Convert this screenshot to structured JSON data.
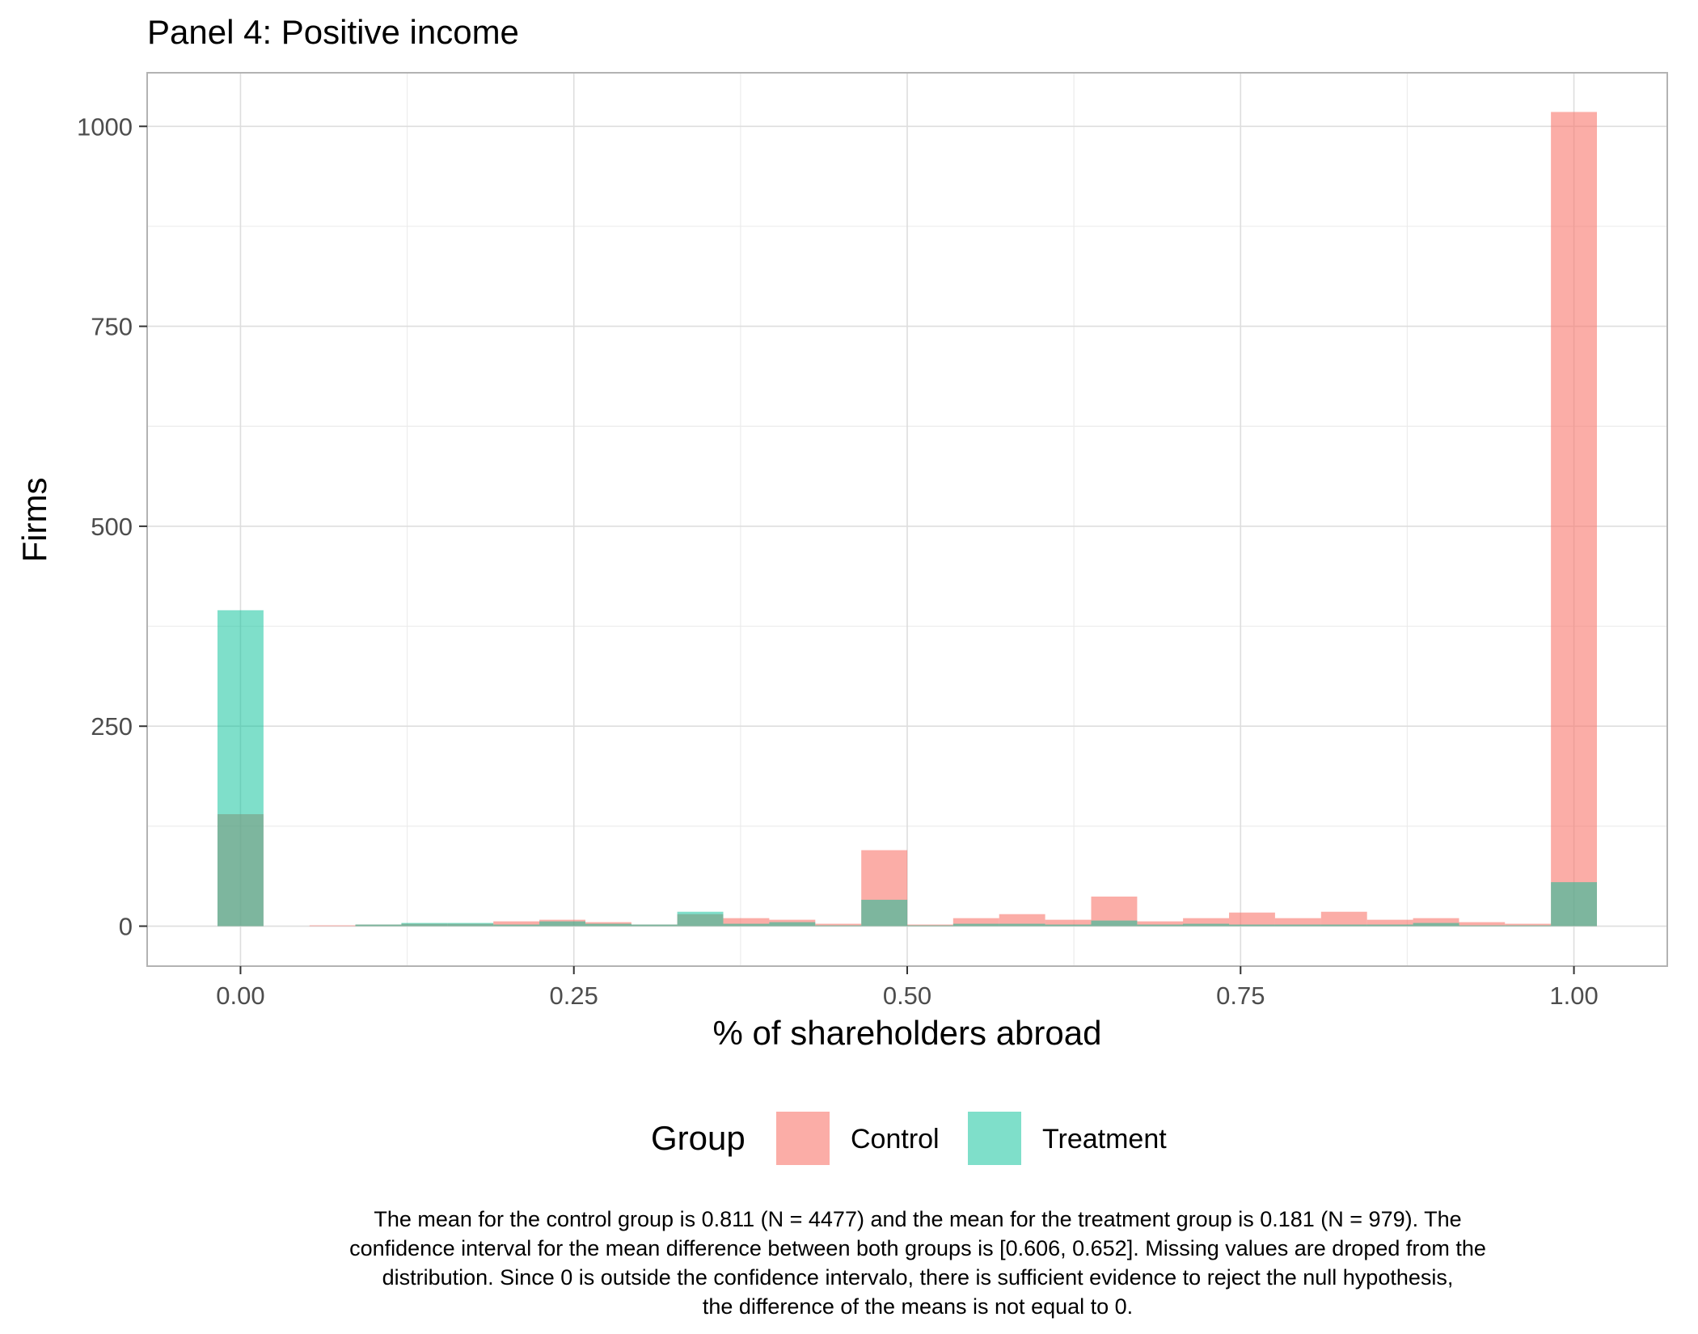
{
  "chart_data": {
    "type": "bar",
    "title": "Panel 4: Positive income",
    "xlabel": "% of shareholders abroad",
    "ylabel": "Firms",
    "xlim": [
      -0.07,
      1.07
    ],
    "ylim": [
      -50,
      1067
    ],
    "x_ticks": [
      0,
      0.25,
      0.5,
      0.75,
      1.0
    ],
    "x_tick_labels": [
      "0.00",
      "0.25",
      "0.50",
      "0.75",
      "1.00"
    ],
    "y_ticks": [
      0,
      250,
      500,
      750,
      1000
    ],
    "y_tick_labels": [
      "0",
      "250",
      "500",
      "750",
      "1000"
    ],
    "grid": true,
    "bin_width": 0.0345,
    "bin_centers": [
      0.0,
      0.0345,
      0.069,
      0.1034,
      0.1379,
      0.1724,
      0.2069,
      0.2414,
      0.2759,
      0.3103,
      0.3448,
      0.3793,
      0.4138,
      0.4483,
      0.4828,
      0.5172,
      0.5517,
      0.5862,
      0.6207,
      0.6552,
      0.6897,
      0.7241,
      0.7586,
      0.7931,
      0.8276,
      0.8621,
      0.8966,
      0.931,
      0.9655,
      1.0
    ],
    "series": [
      {
        "name": "Control",
        "color": "#f8766d",
        "opacity": 0.6,
        "values": [
          140,
          0,
          1,
          2,
          3,
          3,
          6,
          8,
          5,
          2,
          15,
          10,
          8,
          3,
          95,
          2,
          10,
          15,
          8,
          37,
          6,
          10,
          17,
          10,
          18,
          8,
          10,
          5,
          3,
          1018
        ]
      },
      {
        "name": "Treatment",
        "color": "#00bf96",
        "opacity": 0.5,
        "values": [
          395,
          0,
          0,
          2,
          4,
          4,
          2,
          6,
          3,
          2,
          18,
          3,
          5,
          1,
          33,
          1,
          3,
          3,
          2,
          7,
          2,
          3,
          2,
          2,
          2,
          2,
          4,
          1,
          1,
          55
        ]
      }
    ]
  },
  "legend": {
    "title": "Group",
    "items": [
      {
        "label": "Control",
        "color": "#f8766d"
      },
      {
        "label": "Treatment",
        "color": "#00bf96"
      }
    ]
  },
  "caption": {
    "line1": "The mean for the control group is 0.811 (N = 4477) and the mean for the treatment group is 0.181 (N = 979). The",
    "line2": "confidence interval for the mean difference between both groups is [0.606, 0.652]. Missing values are droped from the",
    "line3": "distribution. Since 0 is outside the confidence intervalo, there is sufficient evidence to reject the null hypothesis,",
    "line4": "the difference of the means is not equal to 0."
  }
}
